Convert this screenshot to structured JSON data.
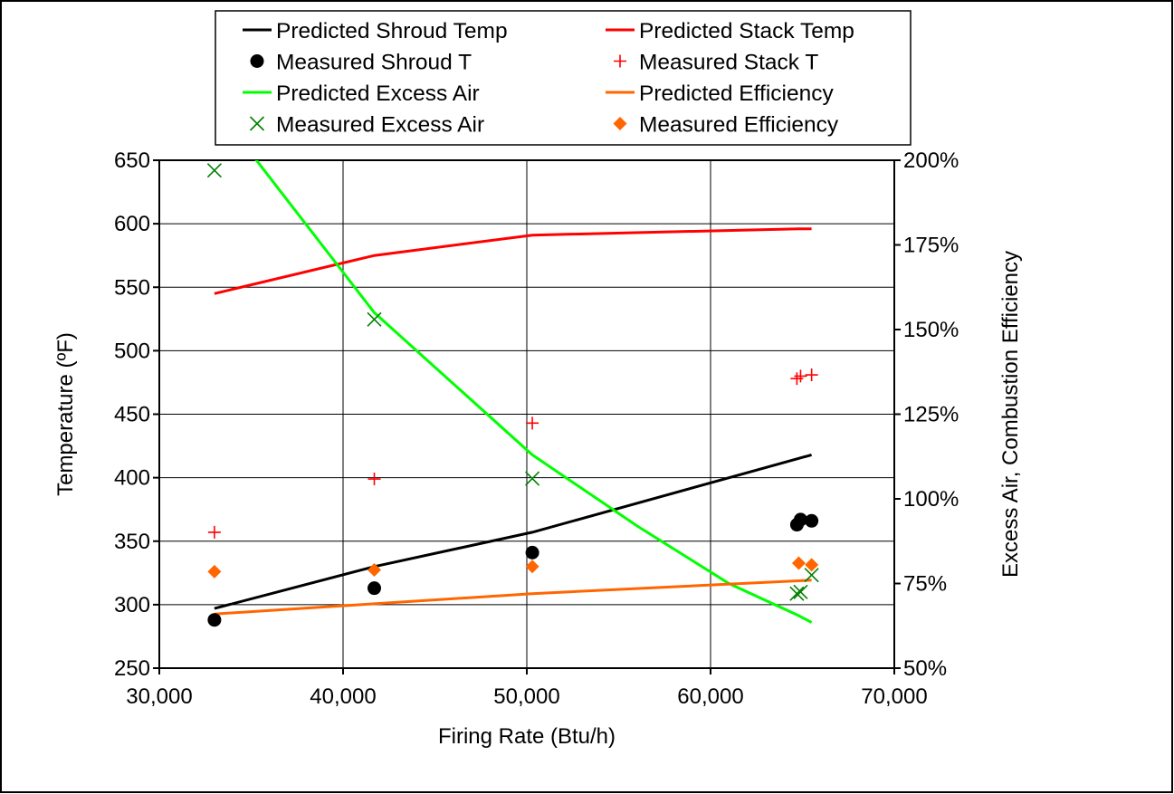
{
  "chart_data": {
    "type": "line",
    "xlabel": "Firing Rate (Btu/h)",
    "ylabel": "Temperature (ºF)",
    "y2label": "Excess Air, Combustion Efficiency",
    "xlim": [
      30000,
      70000
    ],
    "ylim": [
      250,
      650
    ],
    "y2lim": [
      0.5,
      2.0
    ],
    "x_ticks": [
      "30,000",
      "40,000",
      "50,000",
      "60,000",
      "70,000"
    ],
    "y_ticks": [
      "250",
      "300",
      "350",
      "400",
      "450",
      "500",
      "550",
      "600",
      "650"
    ],
    "y2_ticks": [
      "50%",
      "75%",
      "100%",
      "125%",
      "150%",
      "175%",
      "200%"
    ],
    "grid": true,
    "legend_position": "top",
    "series": [
      {
        "name": "Predicted Shroud Temp",
        "kind": "line",
        "axis": "left",
        "color": "#000000",
        "points": [
          [
            33000,
            297
          ],
          [
            41700,
            330
          ],
          [
            50300,
            357
          ],
          [
            65500,
            418
          ]
        ]
      },
      {
        "name": "Predicted Stack Temp",
        "kind": "line",
        "axis": "left",
        "color": "#ff0000",
        "points": [
          [
            33000,
            545
          ],
          [
            41700,
            575
          ],
          [
            50300,
            591
          ],
          [
            64800,
            596
          ],
          [
            65500,
            596
          ]
        ]
      },
      {
        "name": "Measured Shroud T",
        "kind": "marker",
        "marker": "circle",
        "axis": "left",
        "color": "#000000",
        "points": [
          [
            33000,
            288
          ],
          [
            41700,
            313
          ],
          [
            50300,
            341
          ],
          [
            64700,
            363
          ],
          [
            64900,
            367
          ],
          [
            65500,
            366
          ]
        ]
      },
      {
        "name": "Measured Stack T",
        "kind": "marker",
        "marker": "plus",
        "axis": "left",
        "color": "#ff0000",
        "points": [
          [
            33000,
            357
          ],
          [
            41700,
            399
          ],
          [
            50300,
            443
          ],
          [
            64700,
            478
          ],
          [
            64900,
            480
          ],
          [
            65500,
            481
          ]
        ]
      },
      {
        "name": "Predicted Excess Air",
        "kind": "line",
        "axis": "right",
        "color": "#00ff00",
        "points": [
          [
            35000,
            2.02
          ],
          [
            41700,
            1.55
          ],
          [
            50300,
            1.13
          ],
          [
            56000,
            0.92
          ],
          [
            61000,
            0.75
          ],
          [
            64800,
            0.655
          ],
          [
            65500,
            0.635
          ]
        ]
      },
      {
        "name": "Predicted Efficiency",
        "kind": "line",
        "axis": "right",
        "color": "#ff6600",
        "points": [
          [
            33000,
            0.66
          ],
          [
            41700,
            0.69
          ],
          [
            50300,
            0.72
          ],
          [
            65500,
            0.76
          ]
        ]
      },
      {
        "name": "Measured Excess Air",
        "kind": "marker",
        "marker": "x",
        "axis": "right",
        "color": "#008000",
        "points": [
          [
            33000,
            1.97
          ],
          [
            41700,
            1.53
          ],
          [
            50300,
            1.06
          ],
          [
            64700,
            0.72
          ],
          [
            64900,
            0.725
          ],
          [
            65500,
            0.775
          ]
        ]
      },
      {
        "name": "Measured Efficiency",
        "kind": "marker",
        "marker": "diamond",
        "axis": "right",
        "color": "#ff6600",
        "points": [
          [
            33000,
            0.785
          ],
          [
            41700,
            0.79
          ],
          [
            50300,
            0.8
          ],
          [
            64800,
            0.81
          ],
          [
            65500,
            0.805
          ]
        ]
      }
    ]
  }
}
